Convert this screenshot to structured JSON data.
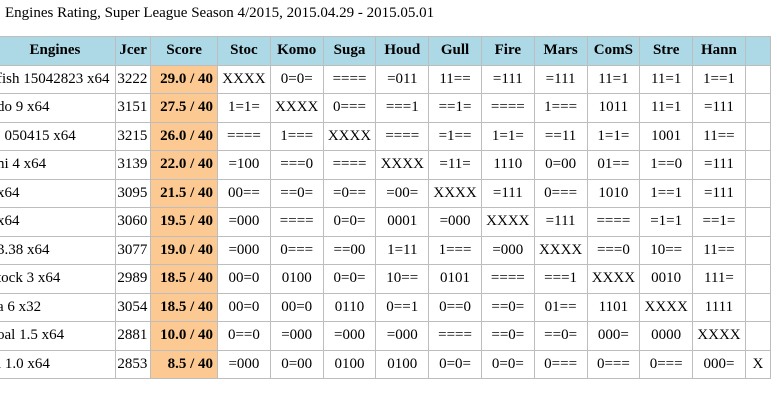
{
  "title": "Engines Rating, Super League Season 4/2015, 2015.04.29 - 2015.05.01",
  "columns": [
    "Engines",
    "Jcer",
    "Score",
    "Stoc",
    "Komo",
    "Suga",
    "Houd",
    "Gull",
    "Fire",
    "Mars",
    "ComS",
    "Stre",
    "Hann",
    ""
  ],
  "rows": [
    {
      "engine": "fish 15042823 x64",
      "jcer": "3222",
      "score": "29.0 / 40",
      "cells": [
        "XXXX",
        "0=0=",
        "====",
        "=011",
        "11==",
        "=111",
        "=111",
        "11=1",
        "11=1",
        "1==1",
        ""
      ]
    },
    {
      "engine": "do 9 x64",
      "jcer": "3151",
      "score": "27.5 / 40",
      "cells": [
        "1=1=",
        "XXXX",
        "0===",
        "===1",
        "==1=",
        "====",
        "1===",
        "1011",
        "11=1",
        "=111",
        ""
      ]
    },
    {
      "engine": ". 050415 x64",
      "jcer": "3215",
      "score": "26.0 / 40",
      "cells": [
        "====",
        "1===",
        "XXXX",
        "====",
        "=1==",
        "1=1=",
        "==11",
        "1=1=",
        "1001",
        "11==",
        ""
      ]
    },
    {
      "engine": "ni 4 x64",
      "jcer": "3139",
      "score": "22.0 / 40",
      "cells": [
        "=100",
        "===0",
        "====",
        "XXXX",
        "=11=",
        "1110",
        "0=00",
        "01==",
        "1==0",
        "=111",
        ""
      ]
    },
    {
      "engine": "x64",
      "jcer": "3095",
      "score": "21.5 / 40",
      "cells": [
        "00==",
        "==0=",
        "=0==",
        "=00=",
        "XXXX",
        "=111",
        "0===",
        "1010",
        "1==1",
        "=111",
        ""
      ]
    },
    {
      "engine": "x64",
      "jcer": "3060",
      "score": "19.5 / 40",
      "cells": [
        "=000",
        "====",
        "0=0=",
        "0001",
        "=000",
        "XXXX",
        "=111",
        "====",
        "=1=1",
        "==1=",
        ""
      ]
    },
    {
      "engine": "3.38 x64",
      "jcer": "3077",
      "score": "19.0 / 40",
      "cells": [
        "=000",
        "0===",
        "==00",
        "1=11",
        "1===",
        "=000",
        "XXXX",
        "===0",
        "10==",
        "11==",
        ""
      ]
    },
    {
      "engine": "tock 3 x64",
      "jcer": "2989",
      "score": "18.5 / 40",
      "cells": [
        "00=0",
        "0100",
        "0=0=",
        "10==",
        "0101",
        "====",
        "===1",
        "XXXX",
        "0010",
        "111=",
        ""
      ]
    },
    {
      "engine": "a 6 x32",
      "jcer": "3054",
      "score": "18.5 / 40",
      "cells": [
        "00=0",
        "00=0",
        "0110",
        "0==1",
        "0==0",
        "==0=",
        "01==",
        "1101",
        "XXXX",
        "1111",
        ""
      ]
    },
    {
      "engine": "oal 1.5 x64",
      "jcer": "2881",
      "score": "10.0 / 40",
      "cells": [
        "0==0",
        "=000",
        "=000",
        "=000",
        "====",
        "==0=",
        "==0=",
        "000=",
        "0000",
        "XXXX",
        ""
      ]
    },
    {
      "engine": "i 1.0 x64",
      "jcer": "2853",
      "score": "8.5 / 40",
      "cells": [
        "=000",
        "0=00",
        "0100",
        "0100",
        "0=0=",
        "0=0=",
        "0===",
        "0===",
        "0===",
        "000=",
        "X"
      ]
    }
  ]
}
